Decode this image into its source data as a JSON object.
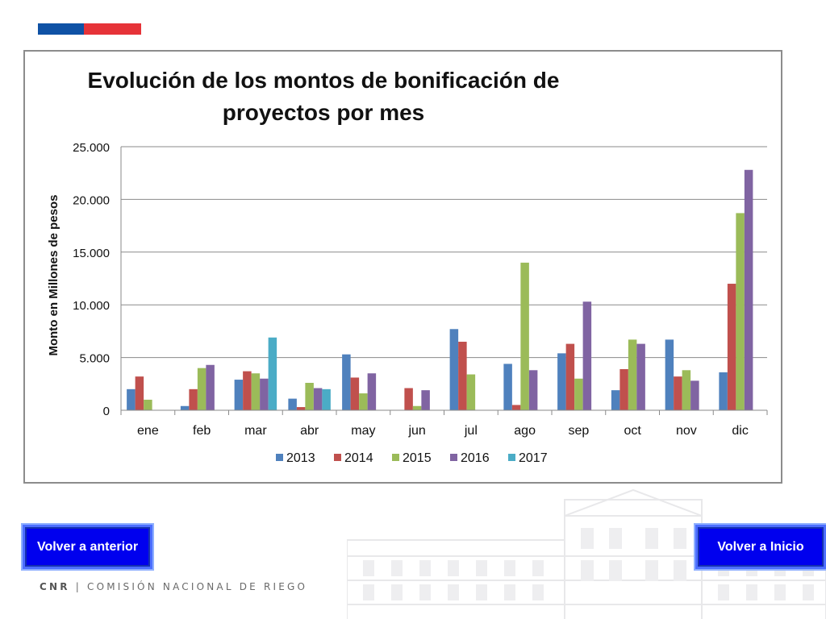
{
  "colors": {
    "flag_blue": "#0f52a5",
    "flag_red": "#e63338",
    "button_blue": "#0000ee"
  },
  "buttons": {
    "prev_label": "Volver a anterior",
    "home_label": "Volver a Inicio"
  },
  "footer": {
    "brand": "CNR",
    "separator": "|",
    "org": "COMISIÓN NACIONAL DE RIEGO"
  },
  "chart_data": {
    "type": "bar",
    "title_lines": [
      "Evolución de los montos de bonificación de",
      "proyectos por mes"
    ],
    "xlabel": "",
    "ylabel": "Monto en Millones de pesos",
    "ylim": [
      0,
      25000
    ],
    "yticks": [
      0,
      5000,
      10000,
      15000,
      20000,
      25000
    ],
    "ytick_labels": [
      "0",
      "5.000",
      "10.000",
      "15.000",
      "20.000",
      "25.000"
    ],
    "grid": true,
    "legend_position": "bottom",
    "categories": [
      "ene",
      "feb",
      "mar",
      "abr",
      "may",
      "jun",
      "jul",
      "ago",
      "sep",
      "oct",
      "nov",
      "dic"
    ],
    "series": [
      {
        "name": "2013",
        "color": "#4f81bd",
        "values": [
          2000,
          400,
          2900,
          1100,
          5300,
          0,
          7700,
          4400,
          5400,
          1900,
          6700,
          3600
        ]
      },
      {
        "name": "2014",
        "color": "#c0504d",
        "values": [
          3200,
          2000,
          3700,
          300,
          3100,
          2100,
          6500,
          500,
          6300,
          3900,
          3200,
          12000
        ]
      },
      {
        "name": "2015",
        "color": "#9bbb59",
        "values": [
          1000,
          4000,
          3500,
          2600,
          1600,
          400,
          3400,
          14000,
          3000,
          6700,
          3800,
          18700
        ]
      },
      {
        "name": "2016",
        "color": "#8064a2",
        "values": [
          0,
          4300,
          3000,
          2100,
          3500,
          1900,
          0,
          3800,
          10300,
          6300,
          2800,
          22800
        ]
      },
      {
        "name": "2017",
        "color": "#4bacc6",
        "values": [
          0,
          0,
          6900,
          2000,
          0,
          0,
          0,
          0,
          0,
          0,
          0,
          0
        ]
      }
    ]
  }
}
